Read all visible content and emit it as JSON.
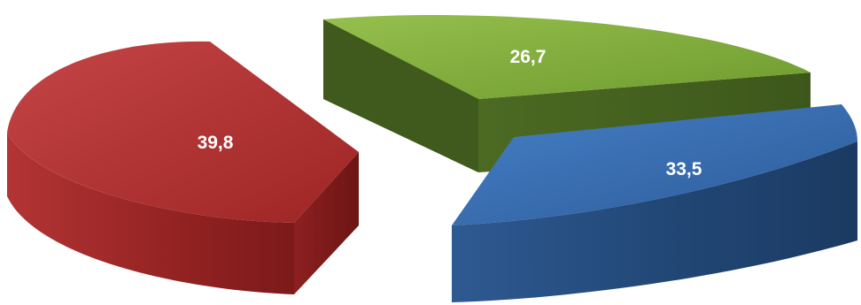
{
  "chart_data": {
    "type": "pie",
    "style": "3d-exploded",
    "title": "",
    "legend": "none",
    "slices": [
      {
        "label": "",
        "value": 39.8,
        "display": "39,8",
        "color": "#b03030"
      },
      {
        "label": "",
        "value": 26.7,
        "display": "26,7",
        "color": "#7ea83a"
      },
      {
        "label": "",
        "value": 33.5,
        "display": "33,5",
        "color": "#2f66aa"
      }
    ]
  }
}
